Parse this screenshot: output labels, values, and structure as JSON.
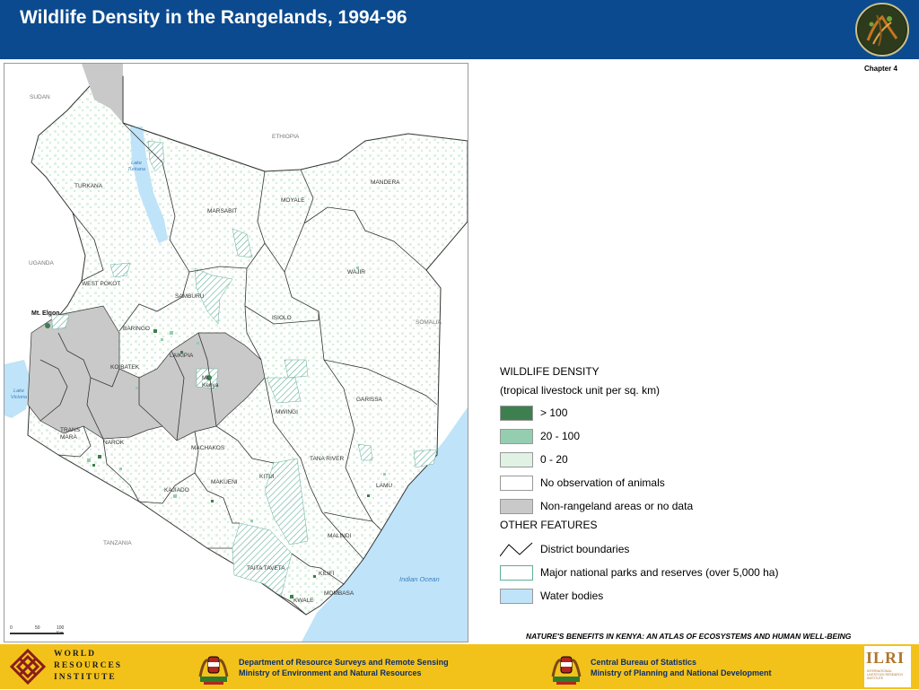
{
  "header": {
    "title": "Wildlife Density in the Rangelands, 1994-96",
    "chapter": "Chapter 4"
  },
  "map": {
    "countries": [
      "SUDAN",
      "ETHIOPIA",
      "UGANDA",
      "SOMALIA",
      "TANZANIA"
    ],
    "water_labels": [
      "Lake Turkana",
      "Lake Victoria",
      "Indian Ocean"
    ],
    "districts": [
      "TURKANA",
      "MARSABIT",
      "MOYALE",
      "MANDERA",
      "WAJIR",
      "WEST POKOT",
      "SAMBURU",
      "BARINGO",
      "ISIOLO",
      "LAIKIPIA",
      "KOIBATEK",
      "MWINGI",
      "GARISSA",
      "TRANS MARA",
      "NAROK",
      "MACHAKOS",
      "KITUI",
      "TANA RIVER",
      "LAMU",
      "MAKUENI",
      "KAJIADO",
      "MALINDI",
      "TAITA TAVETA",
      "KILIFI",
      "MOMBASA",
      "KWALE"
    ],
    "features": [
      "Mt. Elgon",
      "Mt Kenya"
    ],
    "scale": {
      "ticks": [
        "0",
        "50",
        "100 Km"
      ]
    }
  },
  "legend": {
    "title": "WILDLIFE DENSITY",
    "subtitle": "(tropical livestock unit per sq. km)",
    "items": [
      {
        "label": "> 100",
        "color": "#3e7f4f"
      },
      {
        "label": "20 - 100",
        "color": "#95cdb1"
      },
      {
        "label": "0 - 20",
        "color": "#e0f2e3"
      },
      {
        "label": "No observation of animals",
        "color": "#ffffff"
      },
      {
        "label": "Non-rangeland areas or no data",
        "color": "#c9c9c9"
      }
    ],
    "other_title": "OTHER FEATURES",
    "other_items": [
      {
        "label": "District boundaries",
        "icon": "line-icon"
      },
      {
        "label": "Major national parks and reserves (over 5,000 ha)",
        "color": "#ffffff"
      },
      {
        "label": "Water bodies",
        "color": "#bfe3f8"
      }
    ]
  },
  "footer": {
    "reference": "NATURE'S BENEFITS IN KENYA: AN ATLAS OF ECOSYSTEMS AND HUMAN WELL-BEING",
    "wri": [
      "WORLD",
      "RESOURCES",
      "INSTITUTE"
    ],
    "dept1": [
      "Department of Resource Surveys and Remote Sensing",
      "Ministry of Environment and Natural Resources"
    ],
    "dept2": [
      "Central Bureau of Statistics",
      "Ministry of Planning and National Development"
    ],
    "ilri": {
      "name": "ILRI",
      "sub": [
        "INTERNATIONAL",
        "LIVESTOCK RESEARCH",
        "INSTITUTE"
      ]
    }
  }
}
